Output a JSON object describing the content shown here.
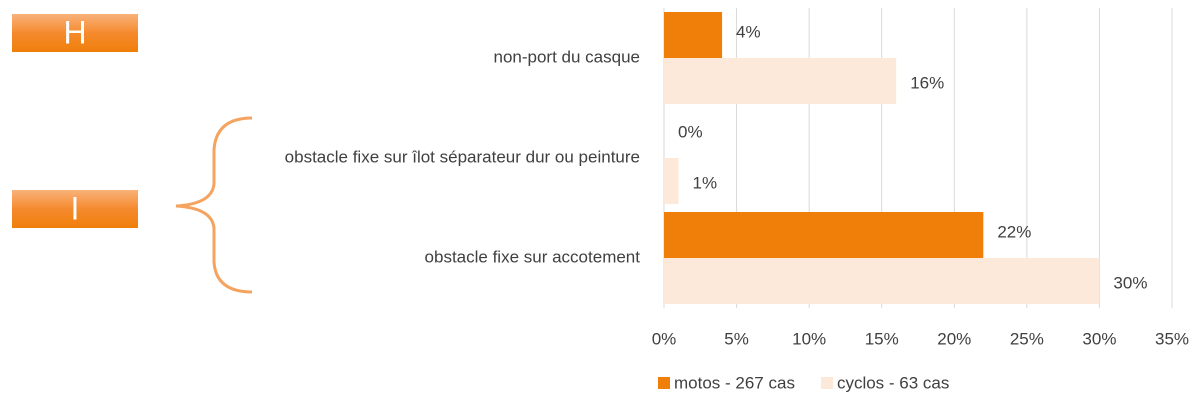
{
  "chart_data": {
    "type": "barh",
    "annotations": [
      "H",
      "I"
    ],
    "categories": [
      "non-port du casque",
      "obstacle fixe sur îlot séparateur dur ou peinture",
      "obstacle fixe sur accotement"
    ],
    "series": [
      {
        "name": "motos - 267 cas",
        "color": "#f07f09",
        "values": [
          4,
          0,
          22
        ],
        "value_labels": [
          "4%",
          "0%",
          "22%"
        ]
      },
      {
        "name": "cyclos - 63 cas",
        "color": "#fde9d9",
        "values": [
          16,
          1,
          30
        ],
        "value_labels": [
          "16%",
          "1%",
          "30%"
        ]
      }
    ],
    "xlim": [
      0,
      35
    ],
    "xticks": [
      {
        "value": 0,
        "label": "0%"
      },
      {
        "value": 5,
        "label": "5%"
      },
      {
        "value": 10,
        "label": "10%"
      },
      {
        "value": 15,
        "label": "15%"
      },
      {
        "value": 20,
        "label": "20%"
      },
      {
        "value": 25,
        "label": "25%"
      },
      {
        "value": 30,
        "label": "30%"
      },
      {
        "value": 35,
        "label": "35%"
      }
    ],
    "grid": true,
    "legend": "bottom"
  }
}
